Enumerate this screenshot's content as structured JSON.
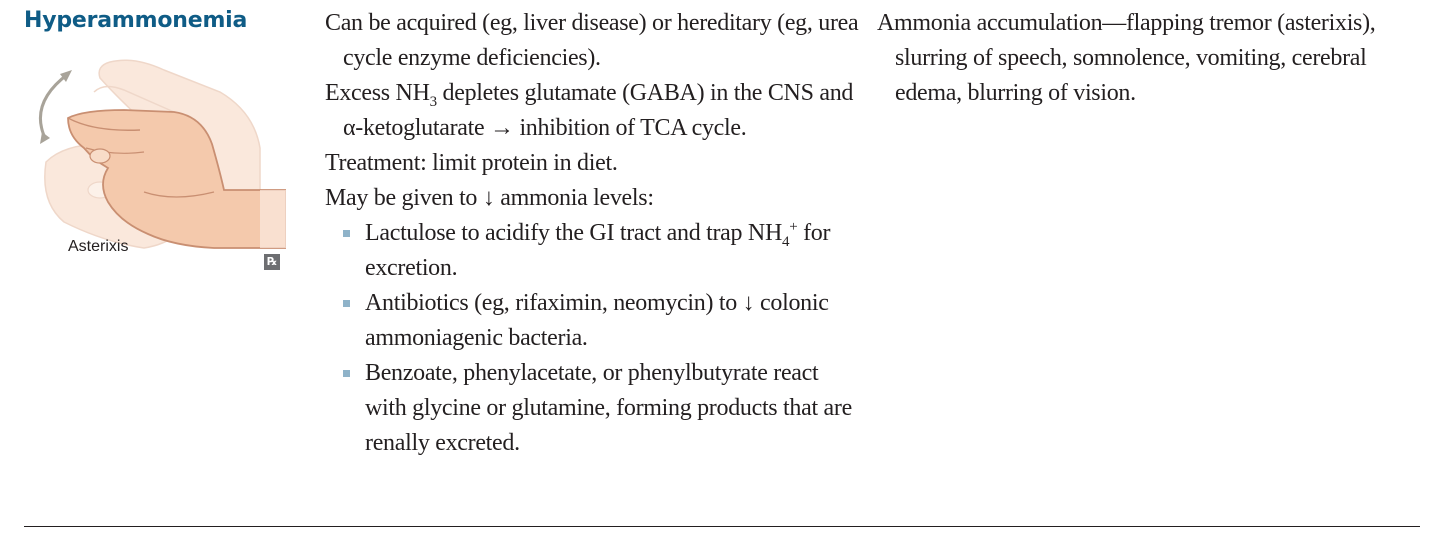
{
  "heading": "Hyperammonemia",
  "figure": {
    "caption": "Asterixis",
    "badge": "Rx",
    "icon": "hand-flapping-tremor-illustration"
  },
  "middle": {
    "p1": "Can be acquired (eg, liver disease) or hereditary (eg, urea cycle enzyme deficiencies).",
    "p2_a": "Excess NH",
    "p2_sub": "3",
    "p2_b": " depletes glutamate (GABA) in the CNS and α-ketoglutarate → inhibition of TCA cycle.",
    "p3": "Treatment: limit protein in diet.",
    "p4": "May be given to ↓ ammonia levels:",
    "b1_a": "Lactulose to acidify the GI tract and trap NH",
    "b1_sub": "4",
    "b1_sup": "+",
    "b1_b": " for excretion.",
    "b2": "Antibiotics (eg, rifaximin, neomycin) to ↓ colonic ammoniagenic bacteria.",
    "b3": "Benzoate, phenylacetate, or phenylbutyrate react with glycine or glutamine, forming products that are renally excreted."
  },
  "right": {
    "p1": "Ammonia accumulation—flapping tremor (asterixis), slurring of speech, somnolence, vomiting, cerebral edema, blurring of vision."
  },
  "colors": {
    "heading": "#0f5c86",
    "bullet": "#8fb3c9",
    "text": "#231f20",
    "hand_skin": "#f6d6c0",
    "hand_outline": "#d8a88b",
    "motion_arrow": "#a8a399"
  }
}
